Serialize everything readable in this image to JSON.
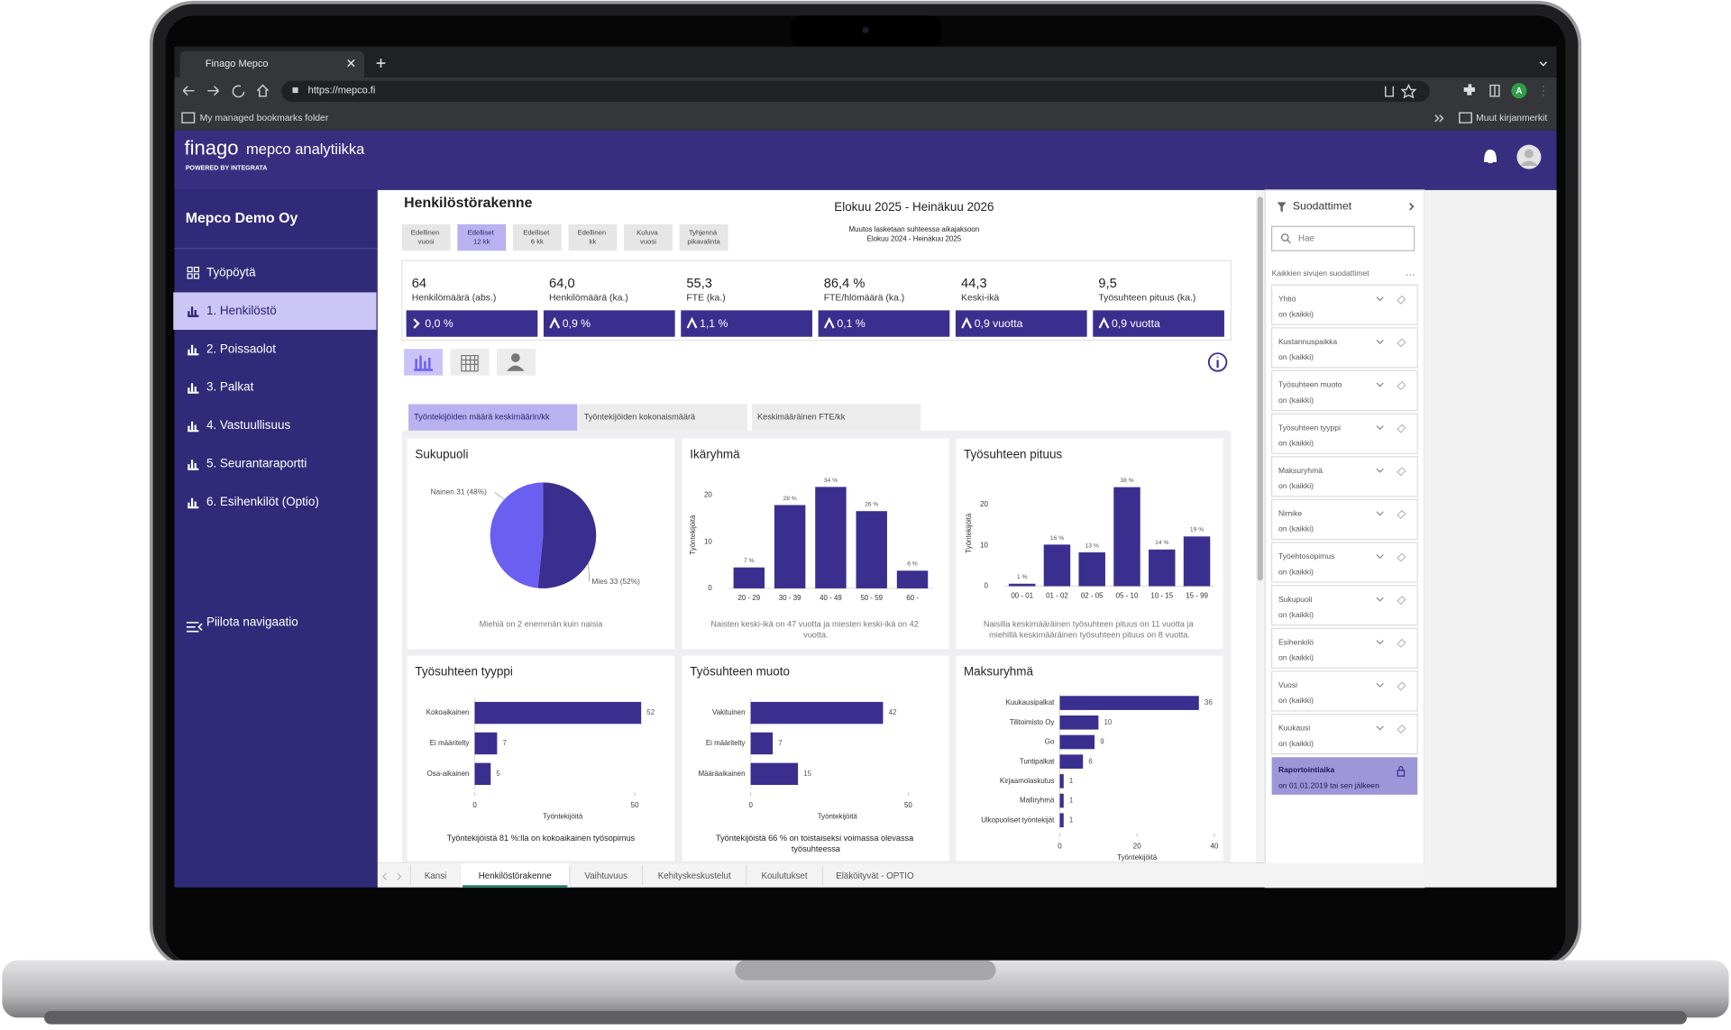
{
  "browser": {
    "tab": "Finago Mepco",
    "url": "https://mepco.fi",
    "bookmarks": "My managed bookmarks folder",
    "other_bookmarks": "Muut kirjanmerkit",
    "profile": "A"
  },
  "header": {
    "logo": "finago",
    "product": "mepco analytiikka",
    "powered_by": "POWERED BY INTEGRATA"
  },
  "sidebar": {
    "company": "Mepco Demo Oy",
    "items": [
      "Työpöytä",
      "1. Henkilöstö",
      "2. Poissaolot",
      "3. Palkat",
      "4. Vastuullisuus",
      "5. Seurantaraportti",
      "6. Esihenkilöt (Optio)"
    ],
    "active": 1,
    "hide": "Piilota navigaatio"
  },
  "page": {
    "title": "Henkilöstörakenne",
    "period_buttons": [
      "Edellinen vuosi",
      "Edelliset 12 kk",
      "Edelliset 6 kk",
      "Edellinen kk",
      "Kuluva vuosi",
      "Tyhjennä pikavalinta"
    ],
    "active_button": 1,
    "period": "Elokuu 2025 - Heinäkuu 2026",
    "note": [
      "Muutos lasketaan suhteessa aikajaksoon",
      "Elokuu 2024 - Heinäkuu 2025"
    ]
  },
  "kpis": [
    {
      "value": "64",
      "label": "Henkilömäärä (abs.)",
      "change": "0,0 %",
      "trend": "flat"
    },
    {
      "value": "64,0",
      "label": "Henkilömäärä (ka.)",
      "change": "0,9 %",
      "trend": "up"
    },
    {
      "value": "55,3",
      "label": "FTE (ka.)",
      "change": "1,1 %",
      "trend": "up"
    },
    {
      "value": "86,4 %",
      "label": "FTE/hlömäärä (ka.)",
      "change": "0,1 %",
      "trend": "up"
    },
    {
      "value": "44,3",
      "label": "Keski-ikä",
      "change": "0,9 vuotta",
      "trend": "up"
    },
    {
      "value": "9,5",
      "label": "Työsuhteen pituus (ka.)",
      "change": "0,9 vuotta",
      "trend": "up"
    }
  ],
  "tabs": [
    "Työntekijöiden määrä keskimäärin/kk",
    "Työntekijöiden kokonaismäärä",
    "Keskimääräinen FTE/kk"
  ],
  "active_tab": 0,
  "charts": [
    {
      "type": "pie",
      "title": "Sukupuoli",
      "values": [
        31,
        33
      ],
      "value_labels": [
        "Nainen 31 (48%)",
        "Mies 33 (52%)"
      ],
      "colors": [
        "#6b5ff2",
        "#3a2f8f"
      ],
      "note": "Miehiä on 2 enemmän kuin naisia"
    },
    {
      "type": "bar",
      "title": "Ikäryhmä",
      "categories": [
        "20 - 29",
        "30 - 39",
        "40 - 49",
        "50 - 59",
        "60 -"
      ],
      "values": [
        4.5,
        17.9,
        21.8,
        16.6,
        3.8
      ],
      "percent_labels": [
        {
          "value": 7,
          "label": "7 %"
        },
        {
          "value": 28,
          "label": "28 %"
        },
        {
          "value": 34,
          "label": "34 %"
        },
        {
          "value": 26,
          "label": "26 %"
        },
        {
          "value": 6,
          "label": "6 %"
        }
      ],
      "ylabel": "Työntekijöitä",
      "ylim": [
        0,
        23
      ],
      "yticks": [
        0,
        10,
        20
      ],
      "color": "#3a2f8f",
      "note": "Naisten keski-ikä on 47 vuotta ja miesten keski-ikä on 42 vuotta."
    },
    {
      "type": "bar",
      "title": "Työsuhteen pituus",
      "categories": [
        "00 - 01",
        "01 - 02",
        "02 - 05",
        "05 - 10",
        "10 - 15",
        "15 - 99"
      ],
      "values": [
        0.6,
        10.2,
        8.3,
        24.3,
        9,
        12.2
      ],
      "percent_labels": [
        {
          "value": 1,
          "label": "1 %"
        },
        {
          "value": 16,
          "label": "16 %"
        },
        {
          "value": 13,
          "label": "13 %"
        },
        {
          "value": 38,
          "label": "38 %"
        },
        {
          "value": 14,
          "label": "14 %"
        },
        {
          "value": 19,
          "label": "19 %"
        }
      ],
      "ylabel": "Työntekijöitä",
      "ylim": [
        0,
        26
      ],
      "yticks": [
        0,
        10,
        20
      ],
      "color": "#3a2f8f",
      "note": "Naisilla keskimääräinen työsuhteen pituus on 11 vuotta ja miehillä keskimääräinen työsuhteen pituus on 8 vuotta."
    },
    {
      "type": "hbar",
      "title": "Työsuhteen tyyppi",
      "categories": [
        "Kokoaikainen",
        "Ei määritelty",
        "Osa-aikainen"
      ],
      "values": [
        52,
        7,
        5
      ],
      "xlabel": "Työntekijöitä",
      "xlim": [
        0,
        55
      ],
      "xticks": [
        0,
        50
      ],
      "color": "#3a2f8f",
      "note": "Työntekijöistä 81 %:lla on kokoaikainen työsopimus"
    },
    {
      "type": "hbar",
      "title": "Työsuhteen muoto",
      "categories": [
        "Vakituinen",
        "Ei määritelty",
        "Määräaikainen"
      ],
      "values": [
        42,
        7,
        15
      ],
      "xlabel": "Työntekijöitä",
      "xlim": [
        0,
        55
      ],
      "xticks": [
        0,
        50
      ],
      "color": "#3a2f8f",
      "note": "Työntekijöistä 66 % on toistaiseksi voimassa olevassa työsuhteessa"
    },
    {
      "type": "hbar",
      "title": "Maksuryhmä",
      "categories": [
        "Kuukausipalkat",
        "Tilitoimisto Oy",
        "Go",
        "Tuntipalkat",
        "Kirjaamolaskutus",
        "Malliryhmä",
        "Ulkopuoliset työntekijät"
      ],
      "values": [
        36,
        10,
        9,
        6,
        1,
        1,
        1
      ],
      "xlabel": "Työntekijöitä",
      "xlim": [
        0,
        40
      ],
      "xticks": [
        0,
        20,
        40
      ],
      "color": "#3a2f8f"
    }
  ],
  "filters": {
    "title": "Suodattimet",
    "search": "Hae",
    "section": "Kaikkien sivujen suodattimet",
    "items": [
      {
        "name": "Yhtiö",
        "value": "on (kaikki)"
      },
      {
        "name": "Kustannuspaikka",
        "value": "on (kaikki)"
      },
      {
        "name": "Työsuhteen muoto",
        "value": "on (kaikki)"
      },
      {
        "name": "Työsuhteen tyyppi",
        "value": "on (kaikki)"
      },
      {
        "name": "Maksuryhmä",
        "value": "on (kaikki)"
      },
      {
        "name": "Nimike",
        "value": "on (kaikki)"
      },
      {
        "name": "Työehtosopimus",
        "value": "on (kaikki)"
      },
      {
        "name": "Sukupuoli",
        "value": "on (kaikki)"
      },
      {
        "name": "Esihenkilö",
        "value": "on (kaikki)"
      },
      {
        "name": "Vuosi",
        "value": "on (kaikki)"
      },
      {
        "name": "Kuukausi",
        "value": "on (kaikki)"
      }
    ],
    "reporting": {
      "name": "Raportointiaika",
      "value": "on 01.01.2019 tai sen jälkeen"
    }
  },
  "bottom_tabs": [
    "Kansi",
    "Henkilöstörakenne",
    "Vaihtuvuus",
    "Kehityskeskustelut",
    "Koulutukset",
    "Eläköityvät - OPTIO"
  ],
  "active_bottom_tab": 1
}
